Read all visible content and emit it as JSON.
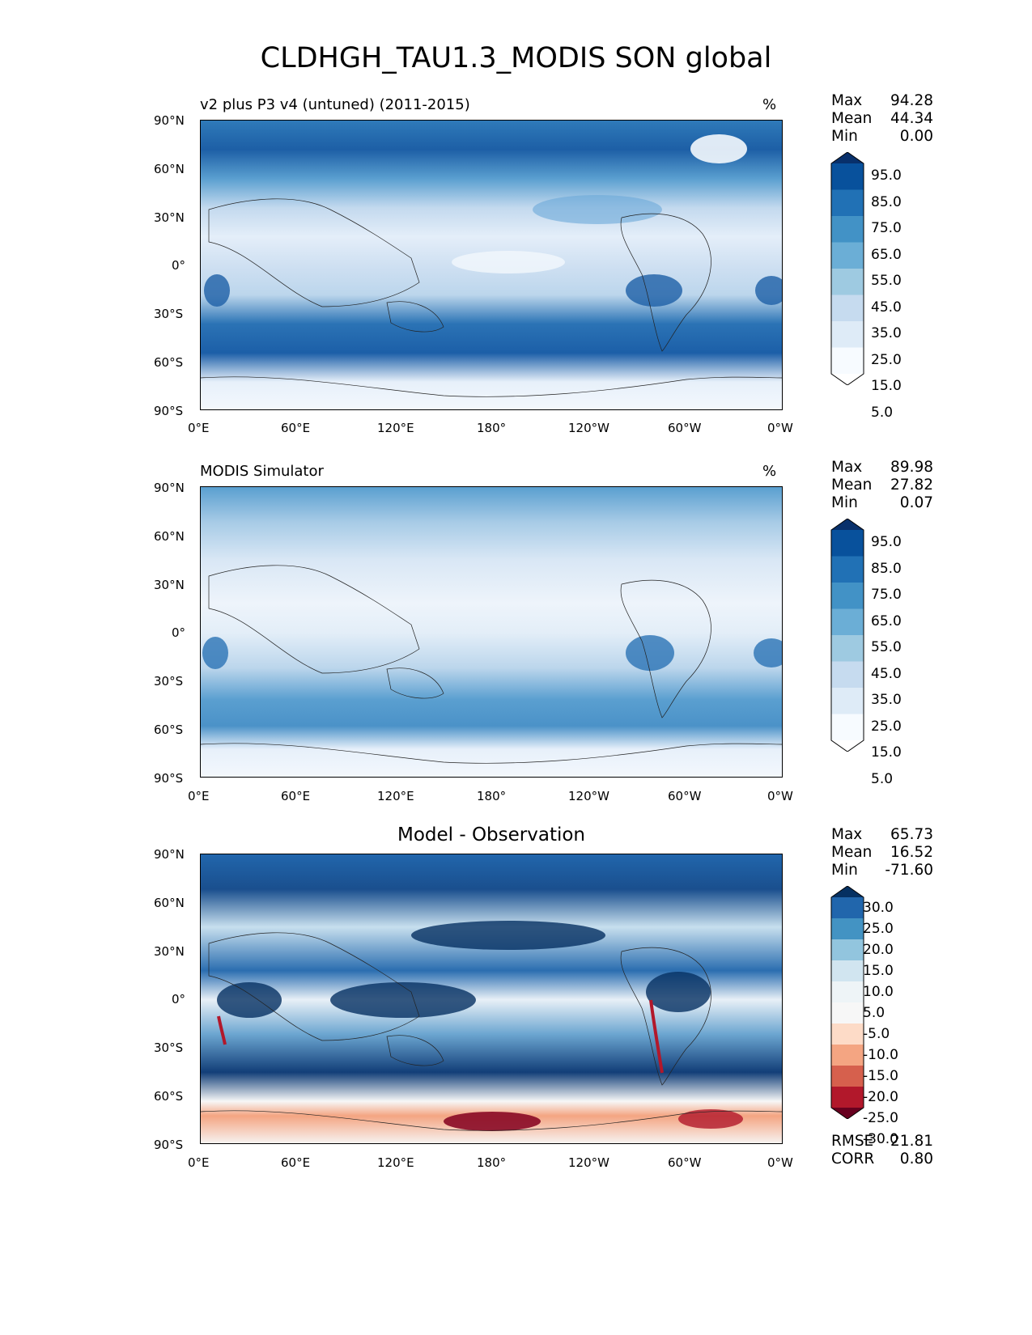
{
  "title": "CLDHGH_TAU1.3_MODIS SON global",
  "panels": [
    {
      "title_left": "v2 plus P3 v4 (untuned) (2011-2015)",
      "title_right": "%",
      "stats": [
        {
          "label": "Max",
          "value": "94.28"
        },
        {
          "label": "Mean",
          "value": "44.34"
        },
        {
          "label": "Min",
          "value": "0.00"
        }
      ],
      "colorbar": {
        "ticks": [
          "95.0",
          "85.0",
          "75.0",
          "65.0",
          "55.0",
          "45.0",
          "35.0",
          "25.0",
          "15.0",
          "5.0"
        ],
        "colors": [
          "#08306b",
          "#08519c",
          "#2171b5",
          "#4292c6",
          "#6baed6",
          "#9ecae1",
          "#c6dbef",
          "#deebf7",
          "#f7fbff",
          "#ffffff"
        ]
      }
    },
    {
      "title_left": "MODIS Simulator",
      "title_right": "%",
      "stats": [
        {
          "label": "Max",
          "value": "89.98"
        },
        {
          "label": "Mean",
          "value": "27.82"
        },
        {
          "label": "Min",
          "value": "0.07"
        }
      ],
      "colorbar": {
        "ticks": [
          "95.0",
          "85.0",
          "75.0",
          "65.0",
          "55.0",
          "45.0",
          "35.0",
          "25.0",
          "15.0",
          "5.0"
        ],
        "colors": [
          "#08306b",
          "#08519c",
          "#2171b5",
          "#4292c6",
          "#6baed6",
          "#9ecae1",
          "#c6dbef",
          "#deebf7",
          "#f7fbff",
          "#ffffff"
        ]
      }
    },
    {
      "title_center": "Model - Observation",
      "stats": [
        {
          "label": "Max",
          "value": "65.73"
        },
        {
          "label": "Mean",
          "value": "16.52"
        },
        {
          "label": "Min",
          "value": "-71.60"
        }
      ],
      "extra_stats": [
        {
          "label": "RMSE",
          "value": "21.81"
        },
        {
          "label": "CORR",
          "value": "0.80"
        }
      ],
      "colorbar": {
        "ticks": [
          "30.0",
          "25.0",
          "20.0",
          "15.0",
          "10.0",
          "5.0",
          "-5.0",
          "-10.0",
          "-15.0",
          "-20.0",
          "-25.0",
          "-30.0"
        ],
        "colors": [
          "#053061",
          "#2166ac",
          "#4393c3",
          "#92c5de",
          "#d1e5f0",
          "#eef4f7",
          "#f7f7f7",
          "#fddbc7",
          "#f4a582",
          "#d6604d",
          "#b2182b",
          "#67001f"
        ]
      }
    }
  ],
  "chart_data": {
    "type": "heatmap",
    "title": "CLDHGH_TAU1.3_MODIS SON global",
    "x_ticks": [
      "0°E",
      "60°E",
      "120°E",
      "180°",
      "120°W",
      "60°W",
      "0°W"
    ],
    "y_ticks": [
      "90°N",
      "60°N",
      "30°N",
      "0°",
      "30°S",
      "60°S",
      "90°S"
    ],
    "xlim": [
      0,
      360
    ],
    "ylim": [
      -90,
      90
    ],
    "panels": [
      {
        "name": "v2 plus P3 v4 (untuned) (2011-2015)",
        "units": "%",
        "max": 94.28,
        "mean": 44.34,
        "min": 0.0,
        "levels": [
          5,
          15,
          25,
          35,
          45,
          55,
          65,
          75,
          85,
          95
        ]
      },
      {
        "name": "MODIS Simulator",
        "units": "%",
        "max": 89.98,
        "mean": 27.82,
        "min": 0.07,
        "levels": [
          5,
          15,
          25,
          35,
          45,
          55,
          65,
          75,
          85,
          95
        ]
      },
      {
        "name": "Model - Observation",
        "max": 65.73,
        "mean": 16.52,
        "min": -71.6,
        "rmse": 21.81,
        "corr": 0.8,
        "levels": [
          -30,
          -25,
          -20,
          -15,
          -10,
          -5,
          5,
          10,
          15,
          20,
          25,
          30
        ]
      }
    ]
  }
}
